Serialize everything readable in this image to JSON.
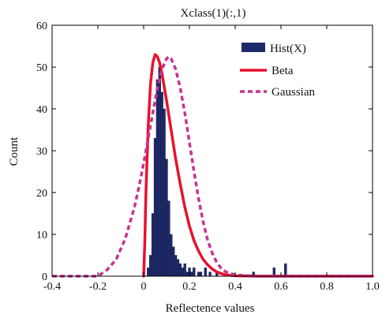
{
  "chart_data": {
    "type": "bar",
    "title": "Xclass(1)(:,1)",
    "xlabel": "Reflectence values",
    "ylabel": "Count",
    "xlim": [
      -0.4,
      1.0
    ],
    "ylim": [
      0,
      60
    ],
    "xticks": [
      "-0.4",
      "-0.2",
      "0",
      "0.2",
      "0.4",
      "0.6",
      "0.8",
      "1.0"
    ],
    "yticks": [
      "0",
      "10",
      "20",
      "30",
      "40",
      "50",
      "60"
    ],
    "grid": false,
    "legend_position": "top-right",
    "series": [
      {
        "name": "Hist(X)",
        "kind": "histogram",
        "color": "#1f2a6b",
        "bin_width": 0.01,
        "bins": [
          {
            "x": 0.02,
            "y": 2
          },
          {
            "x": 0.03,
            "y": 5
          },
          {
            "x": 0.04,
            "y": 15
          },
          {
            "x": 0.05,
            "y": 33
          },
          {
            "x": 0.06,
            "y": 47
          },
          {
            "x": 0.07,
            "y": 50
          },
          {
            "x": 0.08,
            "y": 44
          },
          {
            "x": 0.09,
            "y": 40
          },
          {
            "x": 0.1,
            "y": 28
          },
          {
            "x": 0.11,
            "y": 18
          },
          {
            "x": 0.12,
            "y": 10
          },
          {
            "x": 0.13,
            "y": 7
          },
          {
            "x": 0.14,
            "y": 5
          },
          {
            "x": 0.15,
            "y": 4
          },
          {
            "x": 0.16,
            "y": 3
          },
          {
            "x": 0.17,
            "y": 2
          },
          {
            "x": 0.18,
            "y": 3
          },
          {
            "x": 0.19,
            "y": 1
          },
          {
            "x": 0.2,
            "y": 2
          },
          {
            "x": 0.21,
            "y": 1
          },
          {
            "x": 0.22,
            "y": 2
          },
          {
            "x": 0.24,
            "y": 1
          },
          {
            "x": 0.25,
            "y": 1
          },
          {
            "x": 0.27,
            "y": 2
          },
          {
            "x": 0.29,
            "y": 1
          },
          {
            "x": 0.32,
            "y": 1
          },
          {
            "x": 0.48,
            "y": 1
          },
          {
            "x": 0.57,
            "y": 2
          },
          {
            "x": 0.62,
            "y": 3
          }
        ]
      },
      {
        "name": "Beta",
        "kind": "line",
        "color": "#e8112d",
        "dash": "solid",
        "points": [
          [
            0.0,
            0
          ],
          [
            0.005,
            8
          ],
          [
            0.01,
            20
          ],
          [
            0.02,
            36
          ],
          [
            0.03,
            46
          ],
          [
            0.04,
            51
          ],
          [
            0.05,
            53
          ],
          [
            0.06,
            52.5
          ],
          [
            0.07,
            51
          ],
          [
            0.08,
            48.5
          ],
          [
            0.1,
            42
          ],
          [
            0.12,
            35
          ],
          [
            0.14,
            28
          ],
          [
            0.16,
            22
          ],
          [
            0.18,
            16.5
          ],
          [
            0.2,
            12
          ],
          [
            0.22,
            8.5
          ],
          [
            0.24,
            6
          ],
          [
            0.26,
            4
          ],
          [
            0.28,
            2.7
          ],
          [
            0.3,
            1.7
          ],
          [
            0.32,
            1
          ],
          [
            0.34,
            0.6
          ],
          [
            0.36,
            0.3
          ],
          [
            0.4,
            0.1
          ],
          [
            0.5,
            0
          ],
          [
            0.7,
            0
          ],
          [
            1.0,
            0
          ]
        ]
      },
      {
        "name": "Gaussian",
        "kind": "line",
        "color": "#c8338f",
        "dash": "dashed",
        "points": [
          [
            -0.4,
            0
          ],
          [
            -0.2,
            0
          ],
          [
            -0.16,
            1.5
          ],
          [
            -0.12,
            4
          ],
          [
            -0.08,
            9
          ],
          [
            -0.04,
            16.5
          ],
          [
            -0.02,
            21.5
          ],
          [
            0.0,
            27
          ],
          [
            0.02,
            33
          ],
          [
            0.04,
            39
          ],
          [
            0.06,
            45
          ],
          [
            0.08,
            49.5
          ],
          [
            0.1,
            52
          ],
          [
            0.11,
            52.5
          ],
          [
            0.12,
            52
          ],
          [
            0.14,
            49.5
          ],
          [
            0.16,
            45
          ],
          [
            0.18,
            39
          ],
          [
            0.2,
            32
          ],
          [
            0.22,
            25
          ],
          [
            0.24,
            18.5
          ],
          [
            0.26,
            13
          ],
          [
            0.28,
            8.5
          ],
          [
            0.3,
            5.5
          ],
          [
            0.32,
            3.2
          ],
          [
            0.34,
            1.8
          ],
          [
            0.36,
            1
          ],
          [
            0.4,
            0.3
          ],
          [
            0.5,
            0
          ],
          [
            1.0,
            0
          ]
        ]
      }
    ]
  }
}
